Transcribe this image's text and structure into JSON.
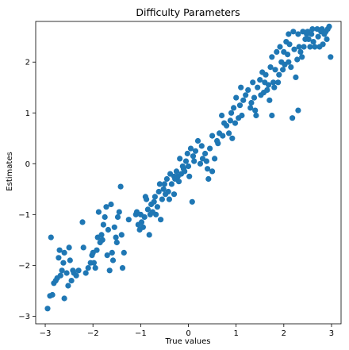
{
  "chart_data": {
    "type": "scatter",
    "title": "Difficulty Parameters",
    "xlabel": "True values",
    "ylabel": "Estimates",
    "xlim": [
      -3.2,
      3.2
    ],
    "ylim": [
      -3.15,
      2.8
    ],
    "xticks": [
      -3,
      -2,
      -1,
      0,
      1,
      2,
      3
    ],
    "yticks": [
      -3,
      -2,
      -1,
      0,
      1,
      2
    ],
    "grid": false,
    "marker_color": "#1f77b4",
    "points": [
      [
        -2.95,
        -2.85
      ],
      [
        -2.9,
        -2.6
      ],
      [
        -2.85,
        -2.58
      ],
      [
        -2.88,
        -1.45
      ],
      [
        -2.82,
        -2.35
      ],
      [
        -2.78,
        -2.3
      ],
      [
        -2.75,
        -2.25
      ],
      [
        -2.72,
        -1.85
      ],
      [
        -2.7,
        -1.7
      ],
      [
        -2.68,
        -2.2
      ],
      [
        -2.65,
        -2.1
      ],
      [
        -2.62,
        -1.95
      ],
      [
        -2.6,
        -1.75
      ],
      [
        -2.6,
        -2.65
      ],
      [
        -2.55,
        -2.15
      ],
      [
        -2.52,
        -2.4
      ],
      [
        -2.5,
        -1.65
      ],
      [
        -2.48,
        -1.9
      ],
      [
        -2.45,
        -2.3
      ],
      [
        -2.42,
        -2.1
      ],
      [
        -2.4,
        -2.15
      ],
      [
        -2.35,
        -2.2
      ],
      [
        -2.3,
        -2.1
      ],
      [
        -2.22,
        -1.15
      ],
      [
        -2.2,
        -1.65
      ],
      [
        -2.15,
        -2.15
      ],
      [
        -2.1,
        -2.05
      ],
      [
        -2.05,
        -1.95
      ],
      [
        -2.02,
        -1.8
      ],
      [
        -2.0,
        -1.75
      ],
      [
        -1.98,
        -1.95
      ],
      [
        -1.95,
        -2.05
      ],
      [
        -1.92,
        -1.7
      ],
      [
        -1.9,
        -1.45
      ],
      [
        -1.88,
        -0.95
      ],
      [
        -1.85,
        -1.55
      ],
      [
        -1.82,
        -1.4
      ],
      [
        -1.8,
        -1.5
      ],
      [
        -1.78,
        -1.2
      ],
      [
        -1.75,
        -1.05
      ],
      [
        -1.72,
        -0.85
      ],
      [
        -1.7,
        -1.8
      ],
      [
        -1.68,
        -1.3
      ],
      [
        -1.65,
        -2.1
      ],
      [
        -1.62,
        -0.8
      ],
      [
        -1.6,
        -1.75
      ],
      [
        -1.58,
        -1.9
      ],
      [
        -1.55,
        -1.25
      ],
      [
        -1.52,
        -1.45
      ],
      [
        -1.5,
        -1.55
      ],
      [
        -1.48,
        -1.05
      ],
      [
        -1.45,
        -0.95
      ],
      [
        -1.42,
        -0.45
      ],
      [
        -1.4,
        -1.4
      ],
      [
        -1.38,
        -2.05
      ],
      [
        -1.35,
        -1.75
      ],
      [
        -1.1,
        -1.0
      ],
      [
        -1.08,
        -0.95
      ],
      [
        -1.05,
        -1.2
      ],
      [
        -1.02,
        -1.3
      ],
      [
        -1.0,
        -1.0
      ],
      [
        -0.98,
        -1.15
      ],
      [
        -0.95,
        -1.25
      ],
      [
        -0.92,
        -1.05
      ],
      [
        -0.9,
        -0.65
      ],
      [
        -0.88,
        -0.7
      ],
      [
        -0.85,
        -0.9
      ],
      [
        -0.82,
        -1.4
      ],
      [
        -0.8,
        -1.0
      ],
      [
        -0.78,
        -0.8
      ],
      [
        -0.75,
        -0.95
      ],
      [
        -0.72,
        -0.75
      ],
      [
        -0.7,
        -0.65
      ],
      [
        -0.68,
        -1.0
      ],
      [
        -0.65,
        -0.85
      ],
      [
        -0.62,
        -0.55
      ],
      [
        -0.6,
        -0.4
      ],
      [
        -0.58,
        -1.1
      ],
      [
        -0.55,
        -0.7
      ],
      [
        -0.52,
        -0.5
      ],
      [
        -0.5,
        -0.4
      ],
      [
        -0.48,
        -0.6
      ],
      [
        -0.45,
        -0.3
      ],
      [
        -0.42,
        -0.55
      ],
      [
        -0.4,
        -0.7
      ],
      [
        -0.38,
        -0.2
      ],
      [
        -0.35,
        -0.4
      ],
      [
        -0.3,
        -0.25
      ],
      [
        -0.28,
        -0.3
      ],
      [
        -0.25,
        -0.15
      ],
      [
        -0.22,
        -0.25
      ],
      [
        -0.2,
        -0.35
      ],
      [
        -0.18,
        0.1
      ],
      [
        -0.15,
        -0.2
      ],
      [
        -0.12,
        -0.05
      ],
      [
        -0.1,
        -0.1
      ],
      [
        -0.08,
        -0.15
      ],
      [
        -0.05,
        0.05
      ],
      [
        -0.02,
        0.2
      ],
      [
        0.0,
        -0.05
      ],
      [
        0.02,
        -0.25
      ],
      [
        0.05,
        0.3
      ],
      [
        0.08,
        -0.75
      ],
      [
        0.1,
        0.15
      ],
      [
        0.12,
        0.05
      ],
      [
        0.15,
        0.25
      ],
      [
        0.2,
        0.45
      ],
      [
        0.25,
        0.0
      ],
      [
        0.28,
        0.35
      ],
      [
        0.3,
        0.1
      ],
      [
        0.35,
        0.2
      ],
      [
        0.38,
        0.05
      ],
      [
        0.4,
        -0.1
      ],
      [
        0.42,
        -0.3
      ],
      [
        0.45,
        0.3
      ],
      [
        0.5,
        -0.15
      ],
      [
        0.55,
        0.1
      ],
      [
        0.6,
        0.45
      ],
      [
        0.62,
        0.4
      ],
      [
        0.65,
        0.6
      ],
      [
        0.7,
        0.95
      ],
      [
        0.72,
        0.55
      ],
      [
        0.75,
        0.8
      ],
      [
        0.8,
        0.75
      ],
      [
        0.85,
        0.6
      ],
      [
        0.88,
        0.85
      ],
      [
        0.9,
        1.0
      ],
      [
        0.92,
        0.5
      ],
      [
        0.95,
        1.1
      ],
      [
        0.98,
        0.8
      ],
      [
        1.0,
        1.3
      ],
      [
        1.05,
        0.9
      ],
      [
        1.08,
        1.15
      ],
      [
        1.1,
        1.5
      ],
      [
        1.12,
        0.95
      ],
      [
        1.15,
        1.25
      ],
      [
        1.2,
        1.35
      ],
      [
        1.25,
        1.45
      ],
      [
        1.3,
        1.1
      ],
      [
        1.32,
        1.2
      ],
      [
        1.35,
        1.6
      ],
      [
        1.38,
        1.3
      ],
      [
        1.4,
        1.05
      ],
      [
        1.42,
        0.95
      ],
      [
        1.45,
        1.5
      ],
      [
        1.5,
        1.65
      ],
      [
        1.52,
        1.35
      ],
      [
        1.55,
        1.8
      ],
      [
        1.58,
        1.4
      ],
      [
        1.6,
        1.6
      ],
      [
        1.62,
        1.75
      ],
      [
        1.65,
        1.45
      ],
      [
        1.68,
        1.55
      ],
      [
        1.7,
        1.25
      ],
      [
        1.72,
        1.9
      ],
      [
        1.75,
        2.1
      ],
      [
        1.78,
        1.6
      ],
      [
        1.8,
        1.5
      ],
      [
        1.82,
        1.85
      ],
      [
        1.85,
        2.2
      ],
      [
        1.88,
        1.6
      ],
      [
        1.9,
        1.75
      ],
      [
        1.92,
        2.3
      ],
      [
        1.95,
        2.0
      ],
      [
        1.98,
        1.85
      ],
      [
        2.0,
        2.2
      ],
      [
        2.02,
        1.95
      ],
      [
        2.05,
        2.4
      ],
      [
        2.08,
        2.15
      ],
      [
        2.1,
        2.0
      ],
      [
        2.12,
        2.35
      ],
      [
        2.15,
        1.9
      ],
      [
        2.18,
        0.9
      ],
      [
        2.2,
        2.6
      ],
      [
        2.22,
        2.25
      ],
      [
        2.25,
        1.7
      ],
      [
        2.28,
        2.05
      ],
      [
        2.3,
        2.55
      ],
      [
        2.32,
        2.3
      ],
      [
        2.35,
        2.2
      ],
      [
        2.38,
        2.1
      ],
      [
        2.4,
        2.6
      ],
      [
        2.42,
        2.3
      ],
      [
        2.45,
        2.45
      ],
      [
        2.48,
        2.55
      ],
      [
        2.5,
        2.6
      ],
      [
        2.52,
        2.45
      ],
      [
        2.55,
        2.3
      ],
      [
        2.58,
        2.55
      ],
      [
        2.6,
        2.65
      ],
      [
        2.62,
        2.4
      ],
      [
        2.65,
        2.3
      ],
      [
        2.7,
        2.65
      ],
      [
        2.72,
        2.5
      ],
      [
        2.75,
        2.3
      ],
      [
        2.78,
        2.6
      ],
      [
        2.8,
        2.65
      ],
      [
        2.82,
        2.35
      ],
      [
        2.85,
        2.55
      ],
      [
        2.88,
        2.6
      ],
      [
        2.9,
        2.45
      ],
      [
        2.92,
        2.65
      ],
      [
        2.95,
        2.7
      ],
      [
        2.98,
        2.1
      ],
      [
        2.3,
        1.05
      ],
      [
        1.75,
        0.95
      ],
      [
        0.5,
        0.55
      ],
      [
        -0.3,
        -0.6
      ],
      [
        -1.25,
        -1.1
      ],
      [
        2.1,
        2.55
      ]
    ]
  }
}
